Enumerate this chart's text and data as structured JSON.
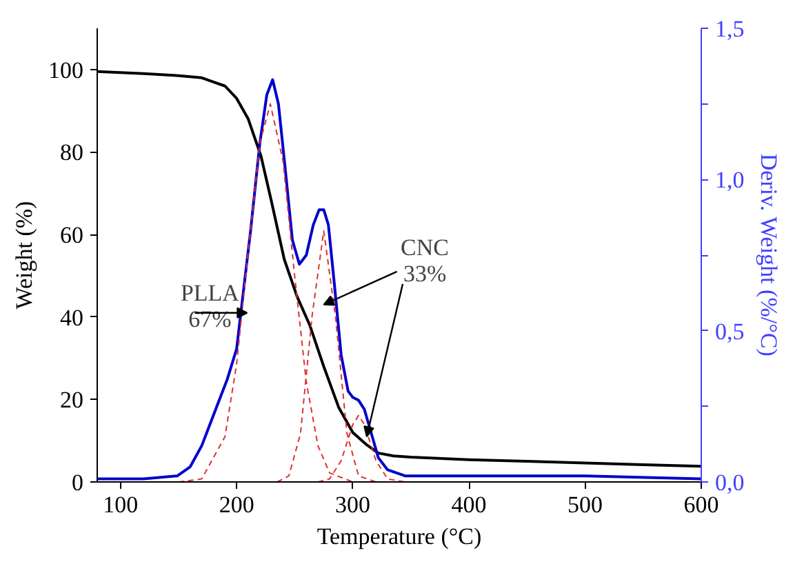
{
  "chart_data": {
    "type": "line",
    "xlabel": "Temperature (°C)",
    "ylabel": "Weight (%)",
    "y2label": "Deriv. Weight (%/°C)",
    "xlim": [
      80,
      600
    ],
    "xticks": [
      100,
      200,
      300,
      400,
      500,
      600
    ],
    "ylim": [
      0,
      110
    ],
    "yticks": [
      0,
      20,
      40,
      60,
      80,
      100
    ],
    "y2lim": [
      0,
      1.5
    ],
    "y2ticks": [
      {
        "value": 0,
        "label": "0,0"
      },
      {
        "value": 0.25,
        "label": null
      },
      {
        "value": 0.5,
        "label": "0,5"
      },
      {
        "value": 0.75,
        "label": null
      },
      {
        "value": 1.0,
        "label": "1,0"
      },
      {
        "value": 1.25,
        "label": null
      },
      {
        "value": 1.5,
        "label": "1,5"
      }
    ],
    "annotations": [
      {
        "text": "PLLA\n67%",
        "x": 209,
        "y": 41
      },
      {
        "text": "CNC\n33%",
        "x": 312,
        "y": 11
      }
    ],
    "series": [
      {
        "color": "#000000",
        "x": [
          80,
          120,
          150,
          170,
          180,
          190,
          200,
          210,
          221,
          230,
          241,
          252,
          263,
          275,
          288,
          300,
          312,
          322,
          335,
          350,
          400,
          450,
          500,
          550,
          600
        ],
        "values": [
          99.5,
          99,
          98.5,
          98,
          97,
          96,
          93,
          88,
          79,
          68,
          54,
          45,
          38,
          28,
          18,
          12,
          9,
          7,
          6.3,
          6,
          5.4,
          5,
          4.6,
          4.2,
          3.8
        ]
      },
      {
        "color": "#0000cc",
        "axis": "y2",
        "x": [
          80,
          120,
          149,
          160,
          170,
          183,
          192,
          200,
          212,
          220,
          226,
          231,
          236,
          242,
          248,
          254,
          260,
          266,
          271,
          275,
          279,
          284,
          290,
          296,
          300,
          305,
          310,
          316,
          322,
          330,
          345,
          400,
          500,
          600
        ],
        "values": [
          0.01,
          0.01,
          0.02,
          0.05,
          0.12,
          0.25,
          0.34,
          0.44,
          0.83,
          1.12,
          1.28,
          1.33,
          1.25,
          1.03,
          0.8,
          0.72,
          0.75,
          0.85,
          0.9,
          0.9,
          0.85,
          0.66,
          0.42,
          0.3,
          0.28,
          0.27,
          0.24,
          0.16,
          0.08,
          0.04,
          0.02,
          0.02,
          0.02,
          0.01
        ]
      },
      {
        "color": "#e03030",
        "axis": "y2",
        "line_style": "dashed",
        "x": [
          150,
          170,
          190,
          200,
          210,
          220,
          229,
          240,
          250,
          260,
          270,
          280,
          300
        ],
        "values": [
          0,
          0.01,
          0.15,
          0.39,
          0.76,
          1.12,
          1.25,
          1.06,
          0.68,
          0.33,
          0.12,
          0.03,
          0
        ]
      },
      {
        "color": "#e03030",
        "axis": "y2",
        "line_style": "dashed",
        "x": [
          235,
          245,
          255,
          265,
          275,
          285,
          295,
          305,
          320
        ],
        "values": [
          0,
          0.02,
          0.16,
          0.55,
          0.83,
          0.55,
          0.16,
          0.02,
          0
        ]
      },
      {
        "color": "#e03030",
        "axis": "y2",
        "line_style": "dashed",
        "x": [
          270,
          280,
          290,
          300,
          305,
          310,
          320,
          330,
          345
        ],
        "values": [
          0,
          0.01,
          0.07,
          0.19,
          0.22,
          0.19,
          0.07,
          0.01,
          0
        ]
      }
    ]
  }
}
